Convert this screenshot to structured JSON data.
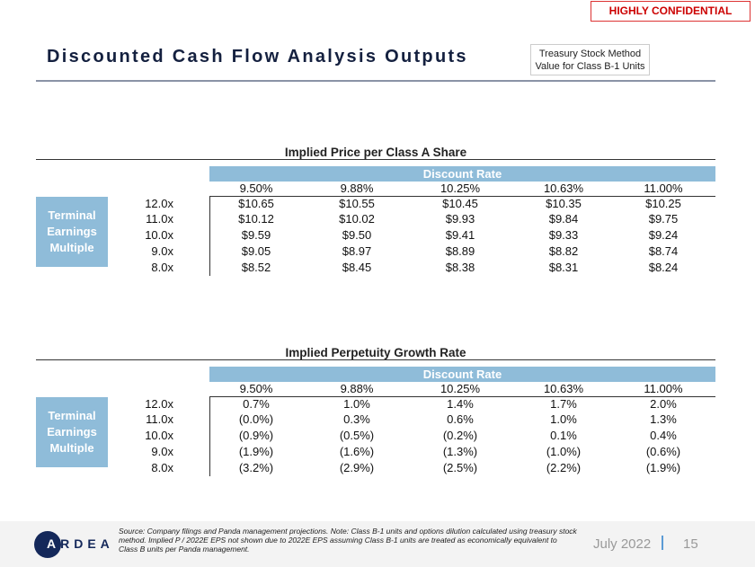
{
  "confidential": "HIGHLY CONFIDENTIAL",
  "title": "Discounted Cash Flow Analysis Outputs",
  "method_box": [
    "Treasury Stock Method",
    "Value for Class B-1 Units"
  ],
  "discount_rates": [
    "9.50%",
    "9.88%",
    "10.25%",
    "10.63%",
    "11.00%"
  ],
  "multiples": [
    "12.0x",
    "11.0x",
    "10.0x",
    "9.0x",
    "8.0x"
  ],
  "discount_rate_label": "Discount Rate",
  "row_label": [
    "Terminal",
    "Earnings",
    "Multiple"
  ],
  "tables": [
    {
      "title": "Implied Price per Class A Share",
      "rows": [
        [
          "$10.65",
          "$10.55",
          "$10.45",
          "$10.35",
          "$10.25"
        ],
        [
          "$10.12",
          "$10.02",
          "$9.93",
          "$9.84",
          "$9.75"
        ],
        [
          "$9.59",
          "$9.50",
          "$9.41",
          "$9.33",
          "$9.24"
        ],
        [
          "$9.05",
          "$8.97",
          "$8.89",
          "$8.82",
          "$8.74"
        ],
        [
          "$8.52",
          "$8.45",
          "$8.38",
          "$8.31",
          "$8.24"
        ]
      ]
    },
    {
      "title": "Implied Perpetuity Growth Rate",
      "rows": [
        [
          "0.7%",
          "1.0%",
          "1.4%",
          "1.7%",
          "2.0%"
        ],
        [
          "(0.0%)",
          "0.3%",
          "0.6%",
          "1.0%",
          "1.3%"
        ],
        [
          "(0.9%)",
          "(0.5%)",
          "(0.2%)",
          "0.1%",
          "0.4%"
        ],
        [
          "(1.9%)",
          "(1.6%)",
          "(1.3%)",
          "(1.0%)",
          "(0.6%)"
        ],
        [
          "(3.2%)",
          "(2.9%)",
          "(2.5%)",
          "(2.2%)",
          "(1.9%)"
        ]
      ]
    }
  ],
  "footer": {
    "logo_first": "A",
    "logo_rest": "RDEA",
    "note": "Source: Company filings and Panda management projections. Note: Class B-1 units and options dilution calculated using treasury stock method. Implied P / 2022E EPS not shown due to 2022E EPS assuming Class B-1 units are treated as economically equivalent to Class B units per Panda management.",
    "date": "July 2022",
    "page": "15"
  }
}
